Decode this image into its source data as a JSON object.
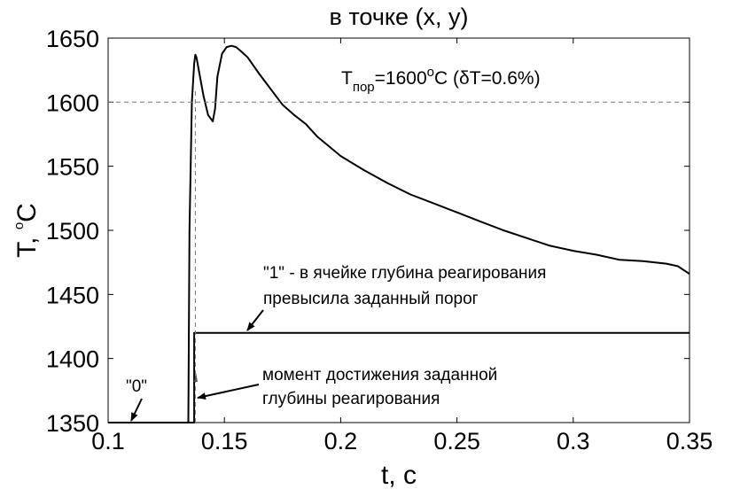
{
  "chart_data": {
    "type": "line",
    "title": "в точке (x, y)",
    "xlabel": "t, c",
    "ylabel": "T, °C",
    "ylabel_parts": {
      "main": "T, ",
      "sup": "o",
      "unit": "C"
    },
    "xlim": [
      0.1,
      0.35
    ],
    "ylim": [
      1350,
      1650
    ],
    "xticks": [
      0.1,
      0.15,
      0.2,
      0.25,
      0.3,
      0.35
    ],
    "xtick_labels": [
      "0.1",
      "0.15",
      "0.2",
      "0.25",
      "0.3",
      "0.35"
    ],
    "yticks": [
      1350,
      1400,
      1450,
      1500,
      1550,
      1600,
      1650
    ],
    "ytick_labels": [
      "1350",
      "1400",
      "1450",
      "1500",
      "1550",
      "1600",
      "1650"
    ],
    "grid": false,
    "series": [
      {
        "name": "",
        "style": "solid",
        "color": "#000000",
        "x": [
          0.1,
          0.1345,
          0.135,
          0.136,
          0.137,
          0.1375,
          0.138,
          0.139,
          0.141,
          0.143,
          0.145,
          0.146,
          0.147,
          0.149,
          0.151,
          0.153,
          0.155,
          0.157,
          0.16,
          0.165,
          0.17,
          0.175,
          0.18,
          0.185,
          0.19,
          0.2,
          0.21,
          0.22,
          0.23,
          0.24,
          0.25,
          0.26,
          0.27,
          0.28,
          0.29,
          0.3,
          0.31,
          0.32,
          0.33,
          0.34,
          0.345,
          0.35
        ],
        "y": [
          1350,
          1350,
          1500,
          1600,
          1630,
          1637,
          1635,
          1625,
          1605,
          1590,
          1585,
          1595,
          1620,
          1638,
          1643,
          1644,
          1643,
          1640,
          1635,
          1622,
          1610,
          1598,
          1590,
          1583,
          1573,
          1558,
          1547,
          1537,
          1528,
          1521,
          1514,
          1507,
          1500,
          1494,
          1488,
          1484,
          1481,
          1477,
          1476,
          1474,
          1472,
          1466
        ]
      },
      {
        "name": "\"0\"/\"1\" indicator",
        "style": "step",
        "color": "#000000",
        "x": [
          0.1,
          0.137,
          0.137,
          0.138,
          0.138,
          0.35
        ],
        "y": [
          1350,
          1350,
          1420,
          1420,
          1420,
          1420
        ]
      },
      {
        "name": "threshold",
        "style": "dashed",
        "color": "#777777",
        "x": [
          0.1,
          0.35
        ],
        "y": [
          1600,
          1600
        ]
      },
      {
        "name": "reaction depth marker",
        "style": "dashed",
        "color": "#777777",
        "x": [
          0.1375,
          0.1375
        ],
        "y": [
          1350,
          1610
        ]
      }
    ],
    "annotations": [
      {
        "id": "threshold",
        "text_main": "T",
        "text_sub": "пор",
        "text_rest": "=1600",
        "text_sup": "o",
        "text_tail": "C (δT=0.6%)"
      },
      {
        "id": "zero",
        "text": "\"0\""
      },
      {
        "id": "one",
        "lines": [
          "\"1\" - в ячейке глубина реагирования",
          "превысила заданный порог"
        ]
      },
      {
        "id": "moment",
        "lines": [
          "момент достижения заданной",
          "глубины реагирования"
        ]
      }
    ]
  }
}
